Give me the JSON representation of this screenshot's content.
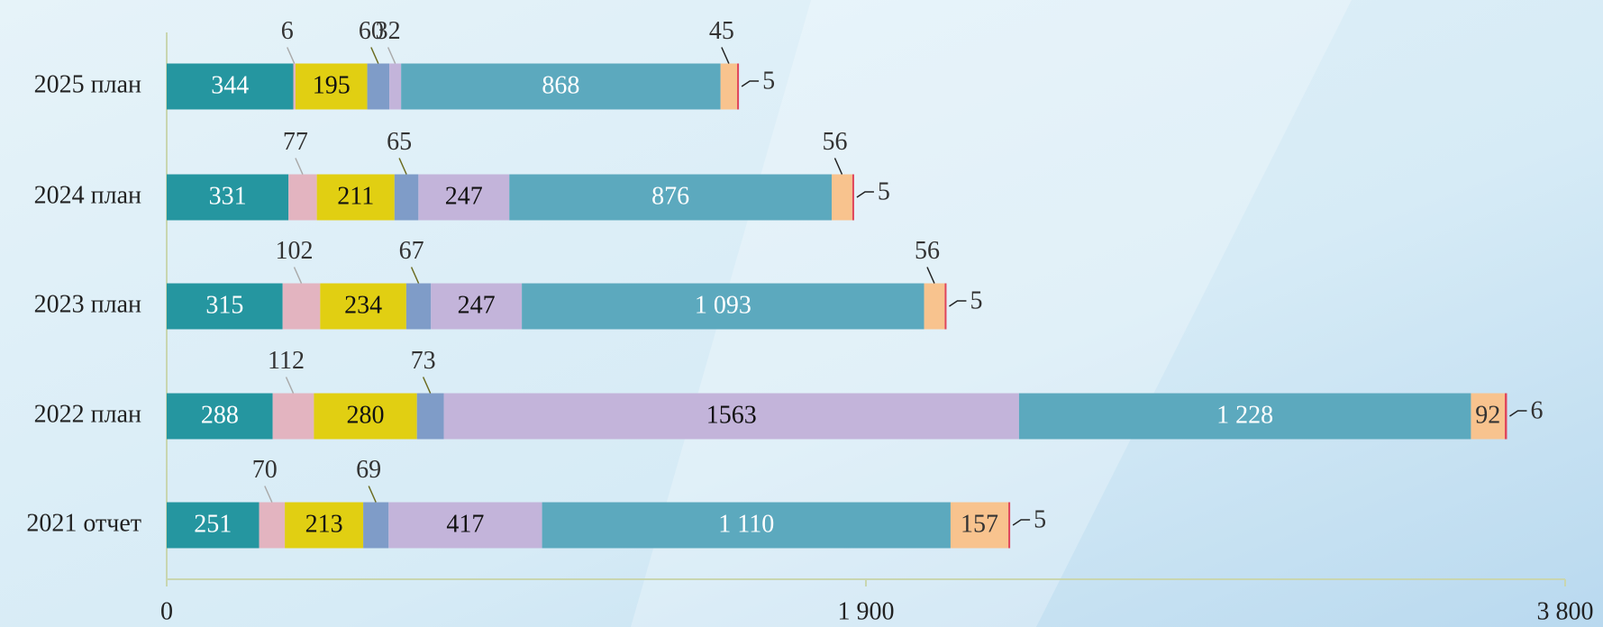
{
  "chart_data": {
    "type": "stacked-barh",
    "categories": [
      "2025 план",
      "2024 план",
      "2023 план",
      "2022 план",
      "2021 отчет"
    ],
    "series": [
      {
        "color": "#2596a0",
        "values": [
          344,
          331,
          315,
          288,
          251
        ]
      },
      {
        "color": "#e3b4c0",
        "values": [
          6,
          77,
          102,
          112,
          70
        ]
      },
      {
        "color": "#e1cf12",
        "values": [
          195,
          211,
          234,
          280,
          213
        ]
      },
      {
        "color": "#7f9cc8",
        "values": [
          60,
          65,
          67,
          73,
          69
        ]
      },
      {
        "color": "#c3b4da",
        "values": [
          32,
          247,
          247,
          1563,
          417
        ]
      },
      {
        "color": "#5ca9be",
        "values": [
          868,
          876,
          1093,
          1228,
          1110
        ],
        "value_labels": [
          "868",
          "876",
          "1 093",
          "1 228",
          "1 110"
        ]
      },
      {
        "color": "#f8c38e",
        "values": [
          45,
          56,
          56,
          92,
          157
        ]
      },
      {
        "color": "#e0455a",
        "values": [
          5,
          5,
          5,
          6,
          5
        ]
      }
    ],
    "value_labels_1": null,
    "xlim": [
      0,
      3800
    ],
    "xticks": [
      0,
      {
        "value": 1900,
        "label": "1 900"
      },
      {
        "value": 3800,
        "label": "3 800"
      }
    ]
  }
}
